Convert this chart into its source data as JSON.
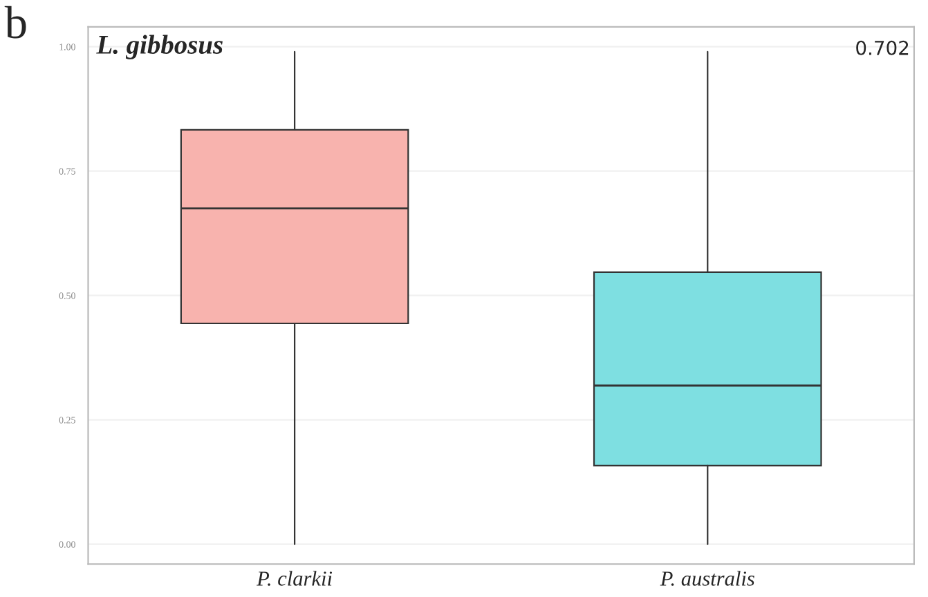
{
  "chart_data": {
    "type": "box",
    "title": "L. gibbosus",
    "categories": [
      "P. clarkii",
      "P. australis"
    ],
    "boxes": [
      {
        "low": 0.0,
        "q1": 0.444,
        "median": 0.675,
        "q3": 0.833,
        "high": 0.99
      },
      {
        "low": 0.0,
        "q1": 0.158,
        "median": 0.319,
        "q3": 0.547,
        "high": 0.99
      }
    ],
    "colors": [
      "#f8b3ae",
      "#7edfe1"
    ],
    "ylim": [
      -0.04,
      1.04
    ],
    "yticks": [
      {
        "value": 0,
        "label": "0.00"
      },
      {
        "value": 0.25,
        "label": "0.25"
      },
      {
        "value": 0.5,
        "label": "0.50"
      },
      {
        "value": 0.75,
        "label": "0.75"
      },
      {
        "value": 1,
        "label": "1.00"
      }
    ],
    "grid": "y",
    "annotations": [
      "0.702",
      "b"
    ]
  }
}
